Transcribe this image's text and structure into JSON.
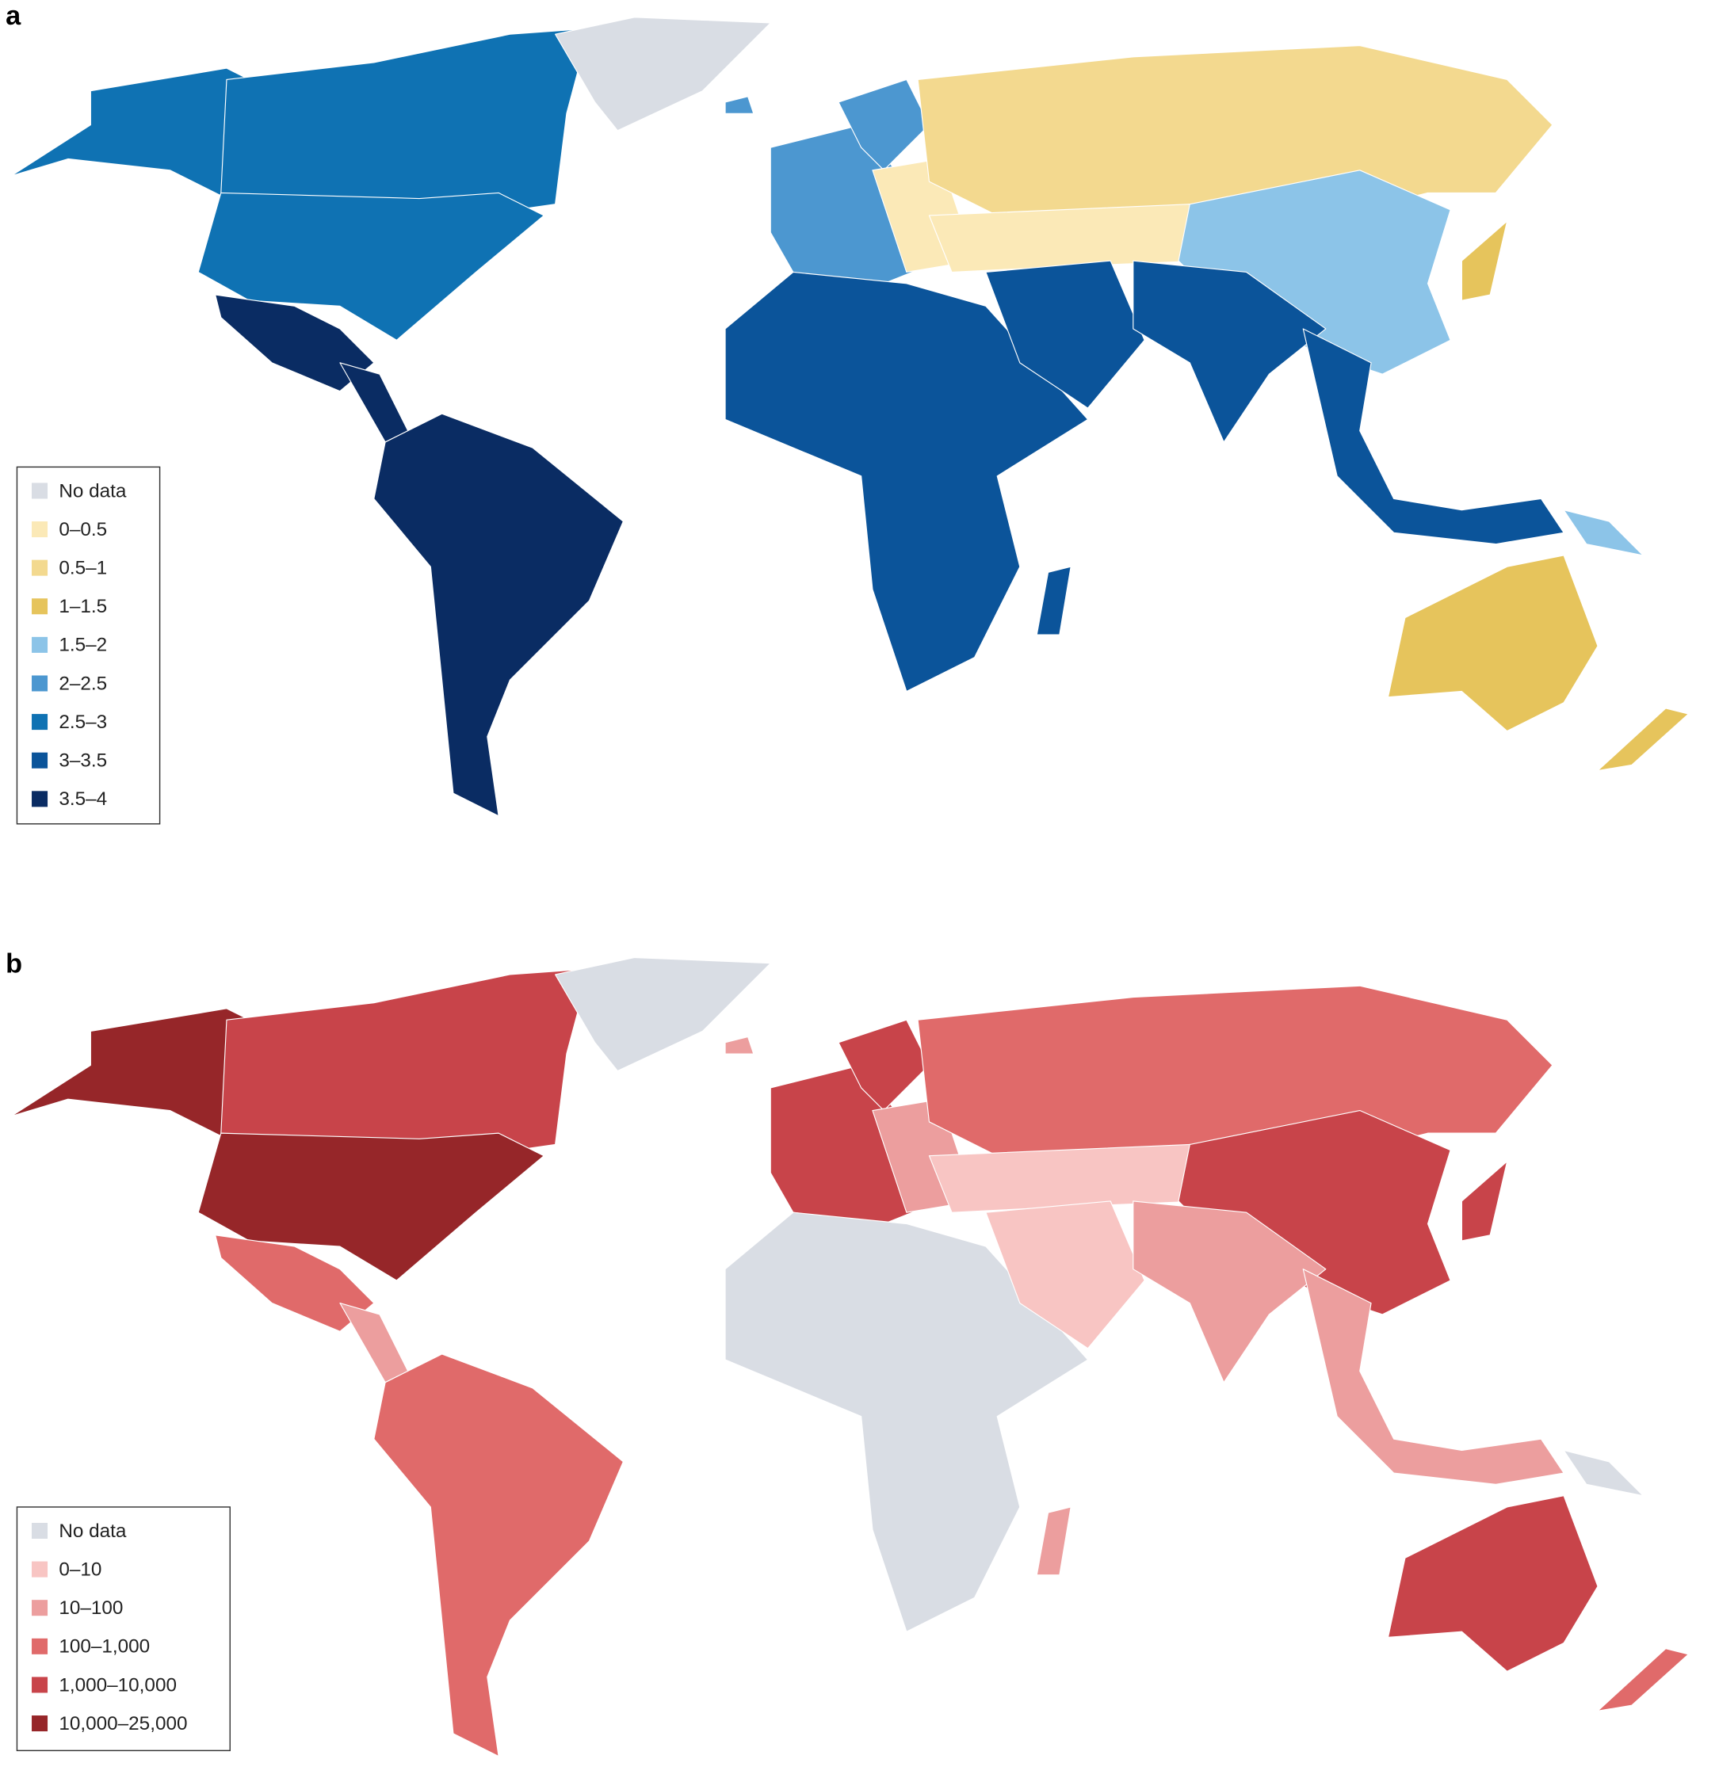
{
  "panels": [
    {
      "label": "a",
      "legend": [
        {
          "label": "No data",
          "color": "#d9dde4"
        },
        {
          "label": "0–0.5",
          "color": "#fbe9b7"
        },
        {
          "label": "0.5–1",
          "color": "#f3d98f"
        },
        {
          "label": "1–1.5",
          "color": "#e6c45c"
        },
        {
          "label": "1.5–2",
          "color": "#8cc4e8"
        },
        {
          "label": "2–2.5",
          "color": "#4c97d0"
        },
        {
          "label": "2.5–3",
          "color": "#0f72b3"
        },
        {
          "label": "3–3.5",
          "color": "#0b549a"
        },
        {
          "label": "3.5–4",
          "color": "#0a2c63"
        }
      ]
    },
    {
      "label": "b",
      "legend": [
        {
          "label": "No data",
          "color": "#d9dde4"
        },
        {
          "label": "0–10",
          "color": "#f8c5c3"
        },
        {
          "label": "10–100",
          "color": "#ec9e9e"
        },
        {
          "label": "100–1,000",
          "color": "#e06a6a"
        },
        {
          "label": "1,000–10,000",
          "color": "#c8444a"
        },
        {
          "label": "10,000–25,000",
          "color": "#962629"
        }
      ]
    }
  ]
}
